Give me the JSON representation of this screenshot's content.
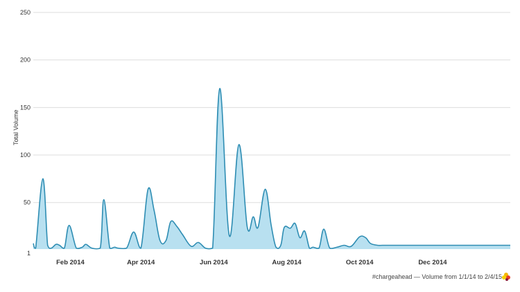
{
  "chart_data": {
    "type": "area",
    "title": "",
    "xlabel": "",
    "ylabel": "Total Volume",
    "y_tick_labels": [
      "1",
      "50",
      "100",
      "150",
      "200",
      "250"
    ],
    "y_tick_values": [
      1,
      50,
      100,
      150,
      200,
      250
    ],
    "ylim": [
      1,
      250
    ],
    "x_tick_labels": [
      "Feb 2014",
      "Apr 2014",
      "Jun 2014",
      "Aug 2014",
      "Oct 2014",
      "Dec 2014"
    ],
    "x_tick_dates": [
      "2014-02-01",
      "2014-04-01",
      "2014-06-01",
      "2014-08-01",
      "2014-10-01",
      "2014-12-01"
    ],
    "xlim": [
      "2014-01-01",
      "2015-02-04"
    ],
    "grid": true,
    "fill_color": "#b8e0f0",
    "line_color": "#2e8db3",
    "grid_color": "#dddddd",
    "series": [
      {
        "x": [
          "2014-01-01",
          "2014-01-03",
          "2014-01-09",
          "2014-01-13",
          "2014-01-16",
          "2014-01-20",
          "2014-01-23",
          "2014-01-27",
          "2014-01-31",
          "2014-02-06",
          "2014-02-11",
          "2014-02-14",
          "2014-02-19",
          "2014-02-26",
          "2014-03-01",
          "2014-03-06",
          "2014-03-10",
          "2014-03-13",
          "2014-03-20",
          "2014-03-26",
          "2014-04-01",
          "2014-04-07",
          "2014-04-12",
          "2014-04-17",
          "2014-04-22",
          "2014-04-26",
          "2014-05-01",
          "2014-05-06",
          "2014-05-13",
          "2014-05-19",
          "2014-05-25",
          "2014-05-31",
          "2014-06-06",
          "2014-06-14",
          "2014-06-22",
          "2014-06-29",
          "2014-07-04",
          "2014-07-08",
          "2014-07-14",
          "2014-07-19",
          "2014-07-23",
          "2014-07-27",
          "2014-07-30",
          "2014-08-04",
          "2014-08-08",
          "2014-08-12",
          "2014-08-16",
          "2014-08-20",
          "2014-08-23",
          "2014-08-28",
          "2014-09-01",
          "2014-09-06",
          "2014-09-12",
          "2014-09-18",
          "2014-09-24",
          "2014-10-01",
          "2014-10-06",
          "2014-10-10",
          "2014-10-16",
          "2014-10-20",
          "2014-10-26",
          "2014-10-31",
          "2014-11-05",
          "2014-11-10",
          "2014-11-15",
          "2014-11-20",
          "2014-11-25",
          "2014-11-30",
          "2014-12-05",
          "2014-12-11",
          "2014-12-18",
          "2014-12-26",
          "2015-01-06",
          "2015-01-13",
          "2015-01-20",
          "2015-01-27",
          "2015-02-04"
        ],
        "y": [
          7,
          2,
          75,
          5,
          2,
          6,
          5,
          2,
          26,
          2,
          3,
          6,
          2,
          2,
          53,
          2,
          3,
          2,
          2,
          19,
          2,
          64,
          42,
          10,
          10,
          30,
          25,
          16,
          4,
          8,
          2,
          2,
          170,
          15,
          111,
          24,
          35,
          24,
          64,
          26,
          3,
          5,
          24,
          23,
          28,
          13,
          20,
          2,
          3,
          2,
          22,
          2,
          3,
          5,
          4,
          14,
          13,
          7,
          5,
          5,
          5,
          5,
          5,
          5,
          5,
          5,
          5,
          5,
          5,
          5,
          5,
          5,
          5,
          5,
          5,
          5,
          5
        ]
      }
    ]
  },
  "caption": {
    "text": "#chargeahead — Volume from 1/1/14 to 2/4/15"
  },
  "logo": {
    "colors": [
      "#f5b800",
      "#e8402a",
      "#8b1a3a",
      "#f5d000"
    ]
  }
}
